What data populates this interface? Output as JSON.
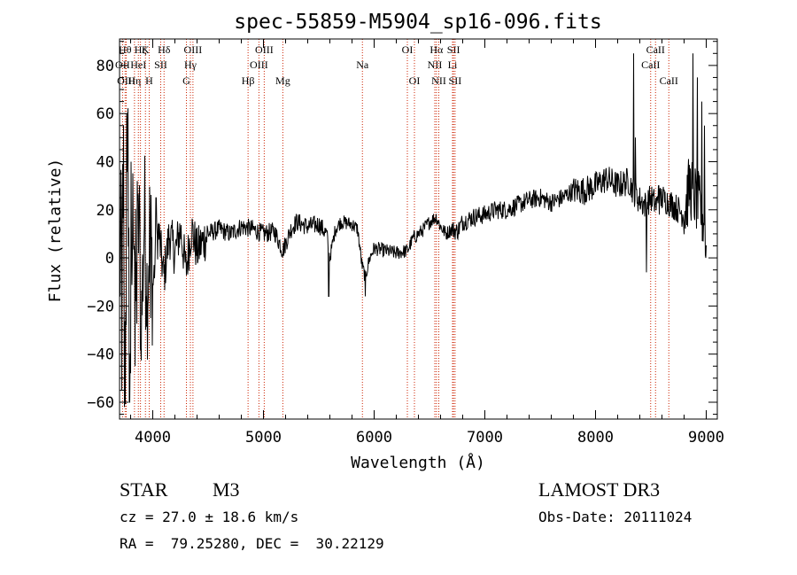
{
  "chart_data": {
    "type": "line",
    "title": "spec-55859-M5904_sp16-096.fits",
    "xlabel": "Wavelength (Å)",
    "ylabel": "Flux (relative)",
    "xlim": [
      3700,
      9100
    ],
    "ylim": [
      -67,
      91
    ],
    "x_ticks": [
      4000,
      5000,
      6000,
      7000,
      8000,
      9000
    ],
    "x_tick_labels": [
      "4000",
      "5000",
      "6000",
      "7000",
      "8000",
      "9000"
    ],
    "y_ticks": [
      -60,
      -40,
      -20,
      0,
      20,
      40,
      60,
      80
    ],
    "y_tick_labels": [
      "−60",
      "−40",
      "−20",
      "0",
      "20",
      "40",
      "60",
      "80"
    ],
    "grid": false,
    "line_color": "#000000",
    "marker_color": "#cc2200",
    "spectrum_anchors": [
      [
        3700,
        -10
      ],
      [
        3725,
        25
      ],
      [
        3750,
        -50
      ],
      [
        3775,
        45
      ],
      [
        3800,
        -40
      ],
      [
        3825,
        30
      ],
      [
        3850,
        -20
      ],
      [
        3875,
        18
      ],
      [
        3900,
        -25
      ],
      [
        3925,
        20
      ],
      [
        3950,
        -15
      ],
      [
        3975,
        15
      ],
      [
        4000,
        -12
      ],
      [
        4050,
        12
      ],
      [
        4100,
        -8
      ],
      [
        4150,
        10
      ],
      [
        4200,
        2
      ],
      [
        4250,
        12
      ],
      [
        4300,
        -5
      ],
      [
        4350,
        12
      ],
      [
        4400,
        3
      ],
      [
        4500,
        10
      ],
      [
        4600,
        12
      ],
      [
        4700,
        10
      ],
      [
        4800,
        13
      ],
      [
        4900,
        12
      ],
      [
        5000,
        10
      ],
      [
        5100,
        11
      ],
      [
        5175,
        3
      ],
      [
        5250,
        12
      ],
      [
        5300,
        15
      ],
      [
        5400,
        13
      ],
      [
        5500,
        14
      ],
      [
        5570,
        10
      ],
      [
        5600,
        0
      ],
      [
        5650,
        12
      ],
      [
        5700,
        15
      ],
      [
        5800,
        14
      ],
      [
        5850,
        12
      ],
      [
        5890,
        -3
      ],
      [
        5920,
        -8
      ],
      [
        5960,
        0
      ],
      [
        6000,
        4
      ],
      [
        6100,
        3
      ],
      [
        6200,
        2
      ],
      [
        6300,
        3
      ],
      [
        6350,
        8
      ],
      [
        6450,
        12
      ],
      [
        6500,
        15
      ],
      [
        6560,
        17
      ],
      [
        6600,
        13
      ],
      [
        6650,
        10
      ],
      [
        6700,
        12
      ],
      [
        6750,
        11
      ],
      [
        6800,
        15
      ],
      [
        6900,
        17
      ],
      [
        7000,
        18
      ],
      [
        7100,
        20
      ],
      [
        7200,
        20
      ],
      [
        7300,
        22
      ],
      [
        7400,
        24
      ],
      [
        7500,
        25
      ],
      [
        7600,
        23
      ],
      [
        7700,
        25
      ],
      [
        7800,
        28
      ],
      [
        7900,
        28
      ],
      [
        8000,
        30
      ],
      [
        8100,
        33
      ],
      [
        8200,
        30
      ],
      [
        8300,
        32
      ],
      [
        8340,
        28
      ],
      [
        8380,
        25
      ],
      [
        8450,
        22
      ],
      [
        8500,
        25
      ],
      [
        8550,
        22
      ],
      [
        8600,
        25
      ],
      [
        8700,
        22
      ],
      [
        8800,
        18
      ],
      [
        8850,
        30
      ],
      [
        8900,
        25
      ],
      [
        8950,
        20
      ],
      [
        8980,
        15
      ],
      [
        9000,
        10
      ]
    ],
    "spikes": [
      [
        3720,
        -55
      ],
      [
        3735,
        55
      ],
      [
        3745,
        -62
      ],
      [
        3765,
        60
      ],
      [
        3790,
        -60
      ],
      [
        3805,
        40
      ],
      [
        3840,
        -45
      ],
      [
        3860,
        32
      ],
      [
        3890,
        -38
      ],
      [
        3935,
        -30
      ],
      [
        3980,
        -25
      ],
      [
        4030,
        25
      ],
      [
        5590,
        -16
      ],
      [
        5920,
        -16
      ],
      [
        8345,
        85
      ],
      [
        8360,
        50
      ],
      [
        8460,
        -6
      ],
      [
        8570,
        30
      ],
      [
        8880,
        85
      ],
      [
        8920,
        75
      ],
      [
        8960,
        65
      ],
      [
        8985,
        55
      ],
      [
        8995,
        0
      ]
    ],
    "line_markers": [
      {
        "x": 3727,
        "label": "OII",
        "row": 1
      },
      {
        "x": 3750,
        "label": "Hθ",
        "row": 0
      },
      {
        "x": 3760,
        "label": "OIII",
        "row": 2
      },
      {
        "x": 3835,
        "label": "Hη",
        "row": 2
      },
      {
        "x": 3870,
        "label": "HeI",
        "row": 1
      },
      {
        "x": 3889,
        "label": "Hζ",
        "row": 0
      },
      {
        "x": 3934,
        "label": "K",
        "row": 0
      },
      {
        "x": 3968,
        "label": "H",
        "row": 2
      },
      {
        "x": 4072,
        "label": "SII",
        "row": 1
      },
      {
        "x": 4102,
        "label": "Hδ",
        "row": 0
      },
      {
        "x": 4304,
        "label": "G",
        "row": 2
      },
      {
        "x": 4340,
        "label": "Hγ",
        "row": 1
      },
      {
        "x": 4363,
        "label": "OIII",
        "row": 0
      },
      {
        "x": 4861,
        "label": "Hβ",
        "row": 2
      },
      {
        "x": 4959,
        "label": "OIII",
        "row": 1
      },
      {
        "x": 5007,
        "label": "OIII",
        "row": 0
      },
      {
        "x": 5175,
        "label": "Mg",
        "row": 2
      },
      {
        "x": 5894,
        "label": "Na",
        "row": 1
      },
      {
        "x": 6300,
        "label": "OI",
        "row": 0
      },
      {
        "x": 6364,
        "label": "OI",
        "row": 2
      },
      {
        "x": 6548,
        "label": "NII",
        "row": 1
      },
      {
        "x": 6563,
        "label": "Hα",
        "row": 0
      },
      {
        "x": 6584,
        "label": "NII",
        "row": 2
      },
      {
        "x": 6708,
        "label": "Li",
        "row": 1
      },
      {
        "x": 6717,
        "label": "SII",
        "row": 0
      },
      {
        "x": 6731,
        "label": "SII",
        "row": 2
      },
      {
        "x": 8498,
        "label": "CaII",
        "row": 1
      },
      {
        "x": 8542,
        "label": "CaII",
        "row": 0
      },
      {
        "x": 8662,
        "label": "CaII",
        "row": 2
      }
    ]
  },
  "info": {
    "class_label": "STAR",
    "subclass_label": "M3",
    "survey_label": "LAMOST DR3",
    "redshift_text": "cz = 27.0 ± 18.6 km/s",
    "obs_date_text": "Obs-Date: 20111024",
    "coords_text": "RA =  79.25280, DEC =  30.22129"
  }
}
